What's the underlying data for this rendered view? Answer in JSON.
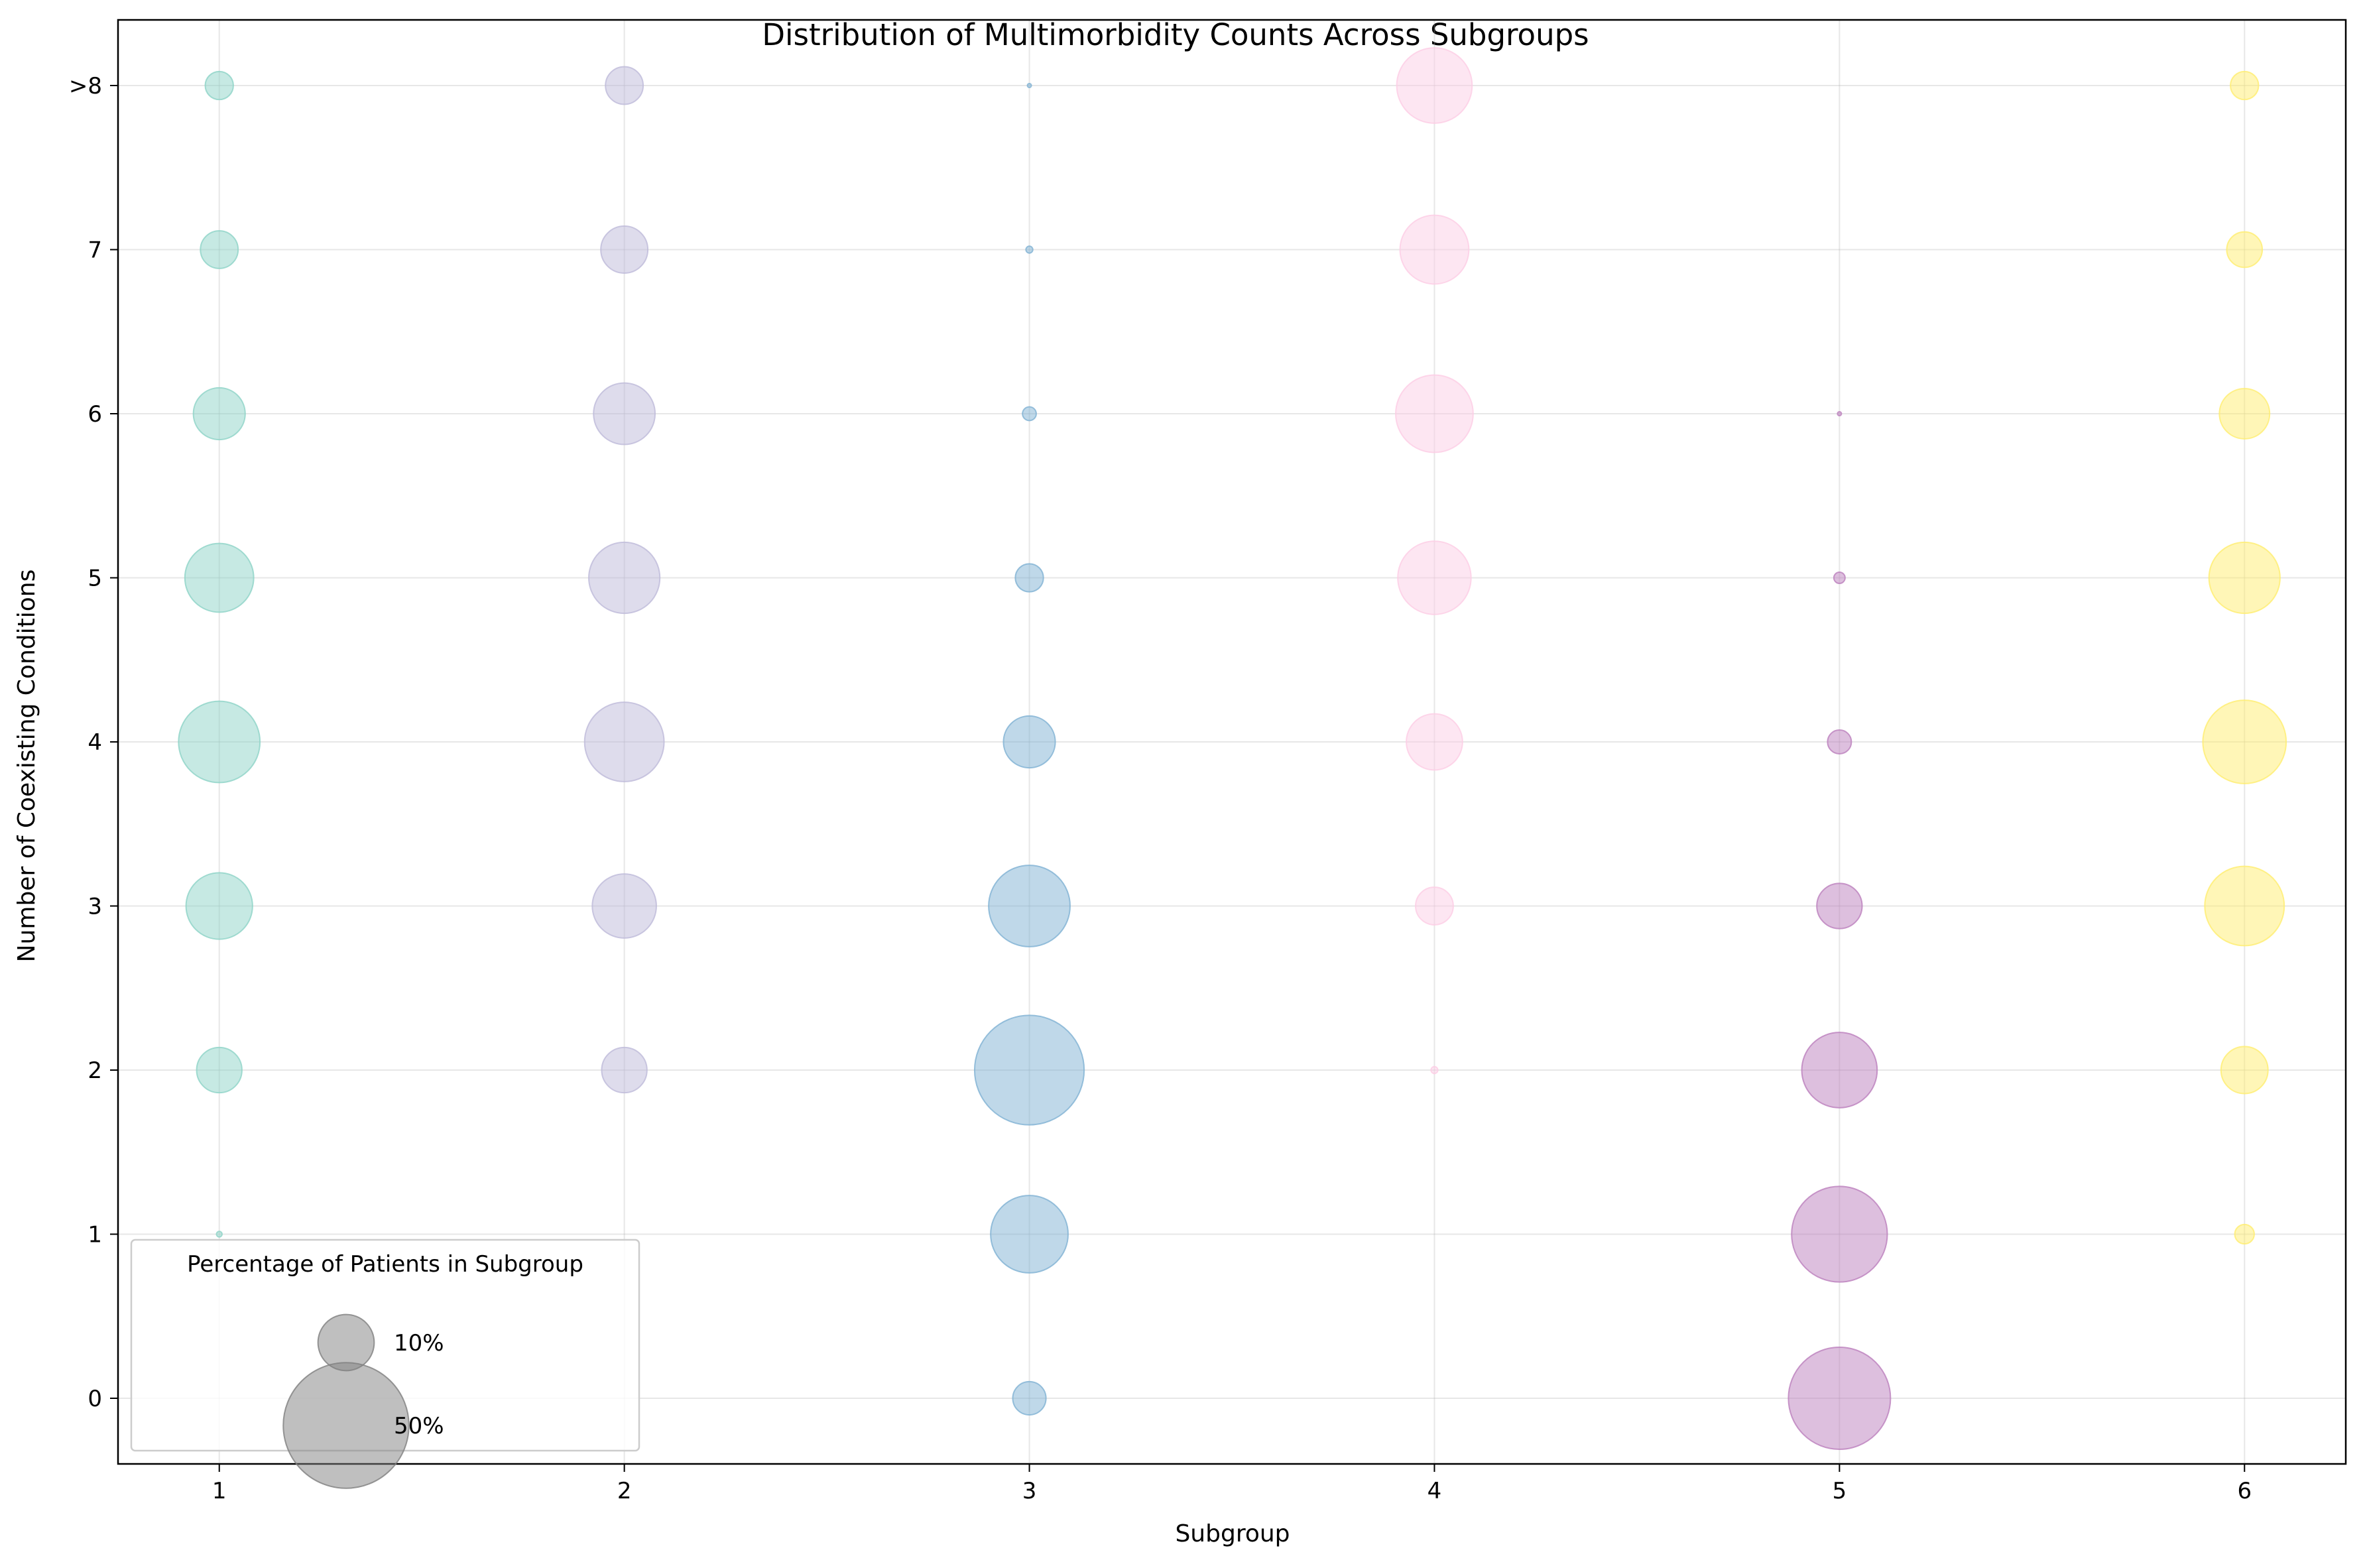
{
  "chart_data": {
    "type": "scatter",
    "title": "Distribution of Multimorbidity Counts Across Subgroups",
    "xlabel": "Subgroup",
    "ylabel": "Number of Coexisting Conditions",
    "x_ticks": [
      "1",
      "2",
      "3",
      "4",
      "5",
      "6"
    ],
    "y_ticks": [
      "0",
      "1",
      "2",
      "3",
      "4",
      "5",
      "6",
      "7",
      ">8"
    ],
    "xlim": [
      0.75,
      6.25
    ],
    "ylim": [
      -0.4,
      8.4
    ],
    "grid": true,
    "size_encoding": "Percentage of Patients in Subgroup",
    "legend": {
      "title": "Percentage of Patients in Subgroup",
      "placement": "lower-left",
      "entries": [
        {
          "label": "10%",
          "value": 10
        },
        {
          "label": "50%",
          "value": 50
        }
      ]
    },
    "series": [
      {
        "subgroup": 1,
        "color": "#8dd3c7",
        "percentages": [
          0,
          0.1,
          6.5,
          14,
          21,
          15,
          8.5,
          4.5,
          2.5
        ]
      },
      {
        "subgroup": 2,
        "color": "#bebada",
        "percentages": [
          0,
          0,
          6.5,
          13,
          20,
          16,
          12,
          7,
          4.5
        ]
      },
      {
        "subgroup": 3,
        "color": "#80b1d3",
        "percentages": [
          3.5,
          19,
          38,
          21,
          8.5,
          2.5,
          0.6,
          0.15,
          0.05
        ]
      },
      {
        "subgroup": 4,
        "color": "#fccde5",
        "percentages": [
          0,
          0,
          0.15,
          4.5,
          10,
          17,
          19,
          15,
          18
        ]
      },
      {
        "subgroup": 5,
        "color": "#bc80bd",
        "percentages": [
          33,
          29,
          18,
          6.5,
          1.8,
          0.4,
          0.05,
          0,
          0
        ]
      },
      {
        "subgroup": 6,
        "color": "#ffed6f",
        "percentages": [
          0,
          1.2,
          7,
          20,
          22,
          16,
          8,
          4,
          2.5
        ]
      }
    ]
  }
}
